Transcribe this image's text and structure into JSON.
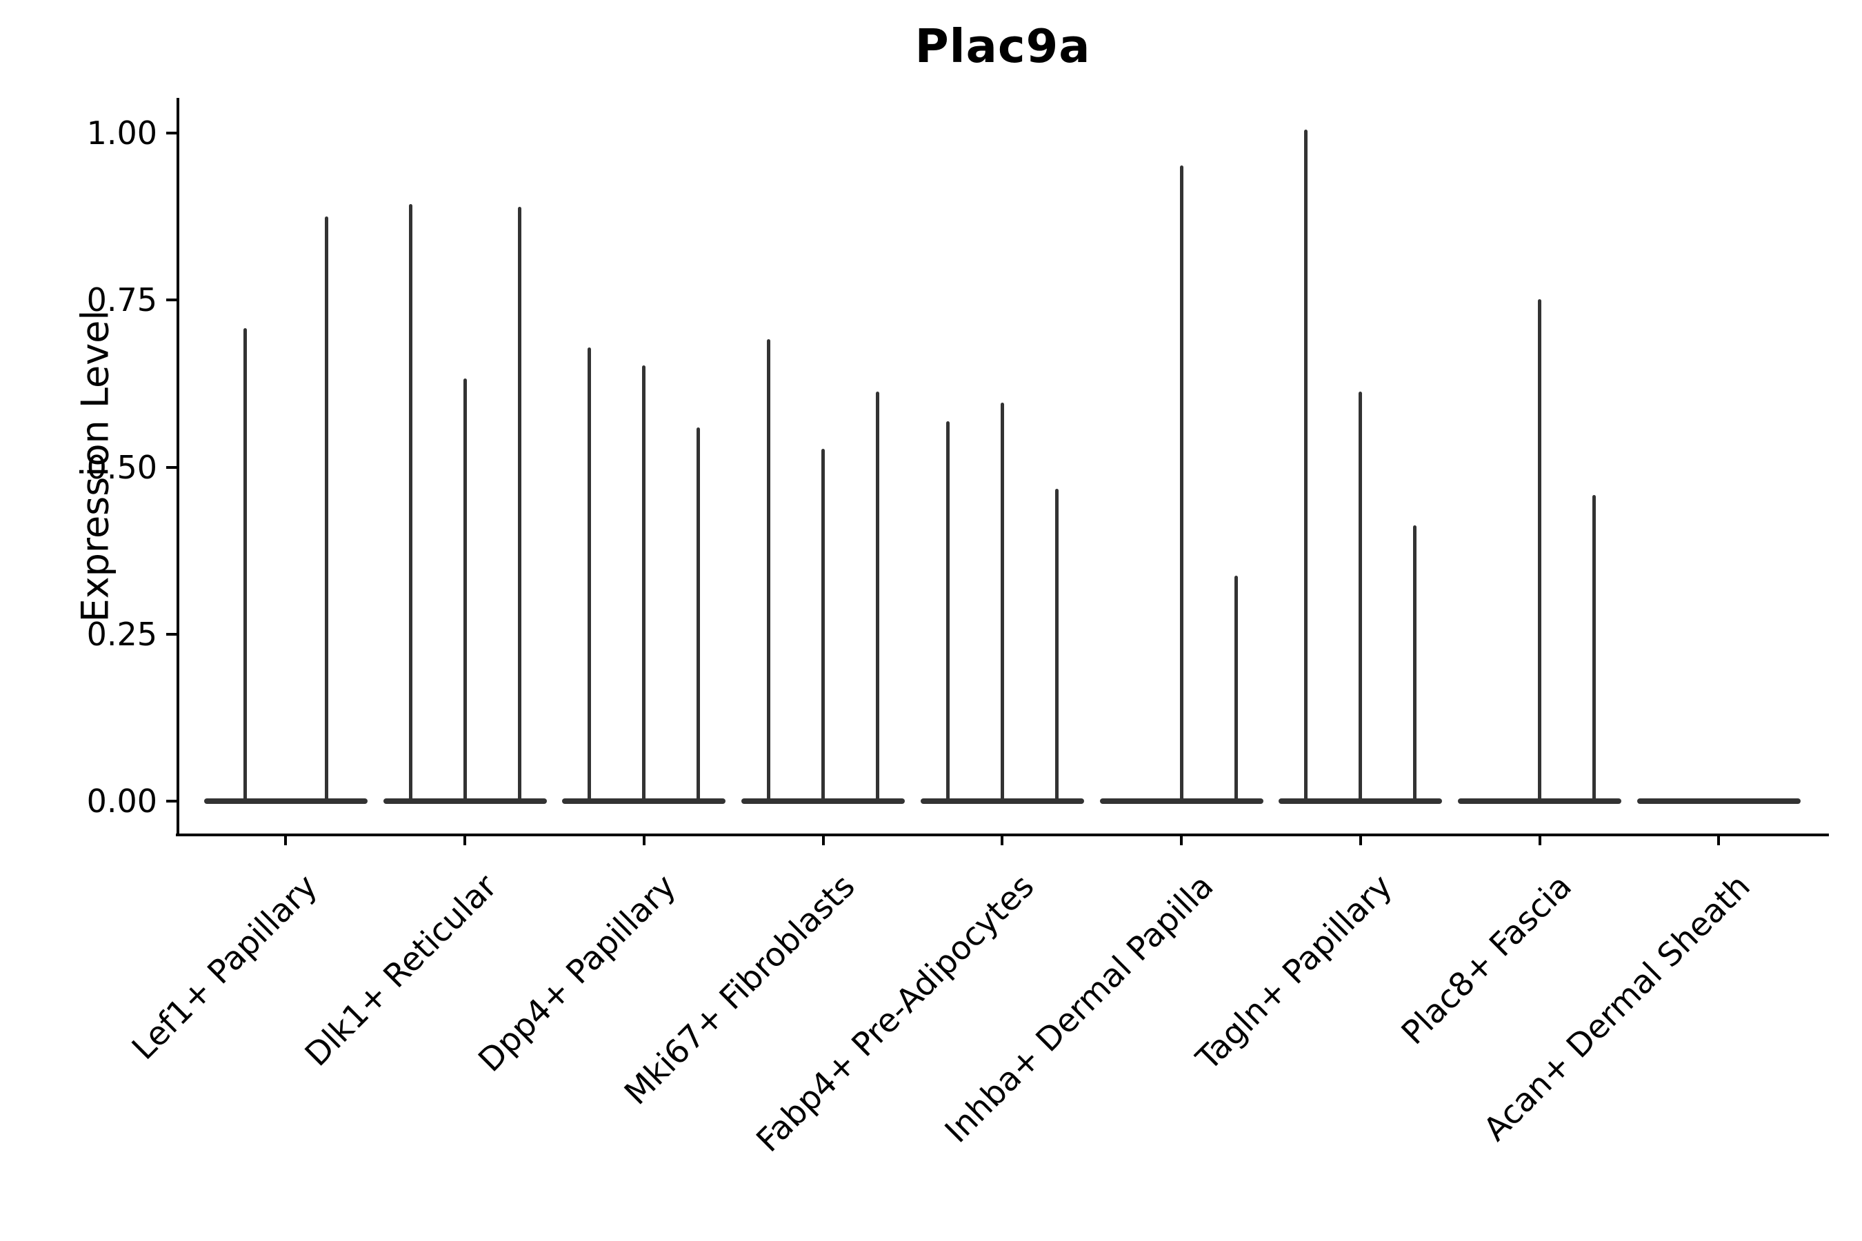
{
  "title": "Plac9a",
  "y_axis": {
    "label": "Expression Level",
    "tick_labels": [
      "0.00",
      "0.25",
      "0.50",
      "0.75",
      "1.00"
    ]
  },
  "chart_data": {
    "type": "violin",
    "title": "Plac9a",
    "xlabel": "",
    "ylabel": "Expression Level",
    "ylim": [
      -0.05,
      1.05
    ],
    "ytick_values": [
      0.0,
      0.25,
      0.5,
      0.75,
      1.0
    ],
    "ytick_labels": [
      "0.00",
      "0.25",
      "0.50",
      "0.75",
      "1.00"
    ],
    "grid": false,
    "legend_position": "none",
    "violin_color": "#333333",
    "axis_color": "#000000",
    "description": "Stacked-group violin plot of Plac9a expression per fibroblast cluster; violins are collapsed to near-zero-width spikes (most cells at 0, thin density reaching listed maxima). Null means a violin body flat at 0 with no spike.",
    "categories": [
      {
        "label": "Lef1+ Papillary",
        "violin_maxima": [
          0.708,
          0.875
        ]
      },
      {
        "label": "Dlk1+ Reticular",
        "violin_maxima": [
          0.894,
          0.633,
          0.89
        ]
      },
      {
        "label": "Dpp4+ Papillary",
        "violin_maxima": [
          0.679,
          0.652,
          0.559
        ]
      },
      {
        "label": "Mki67+ Fibroblasts",
        "violin_maxima": [
          0.691,
          0.527,
          0.613
        ]
      },
      {
        "label": "Fabp4+ Pre-Adipocytes",
        "violin_maxima": [
          0.569,
          0.597,
          0.467
        ]
      },
      {
        "label": "Inhba+ Dermal Papilla",
        "violin_maxima": [
          null,
          0.952,
          0.337
        ]
      },
      {
        "label": "Tagln+ Papillary",
        "violin_maxima": [
          1.005,
          0.613,
          0.413
        ]
      },
      {
        "label": "Plac8+ Fascia",
        "violin_maxima": [
          null,
          0.751,
          0.458
        ]
      },
      {
        "label": "Acan+ Dermal Sheath",
        "violin_maxima": [
          null,
          null,
          null
        ]
      }
    ]
  }
}
